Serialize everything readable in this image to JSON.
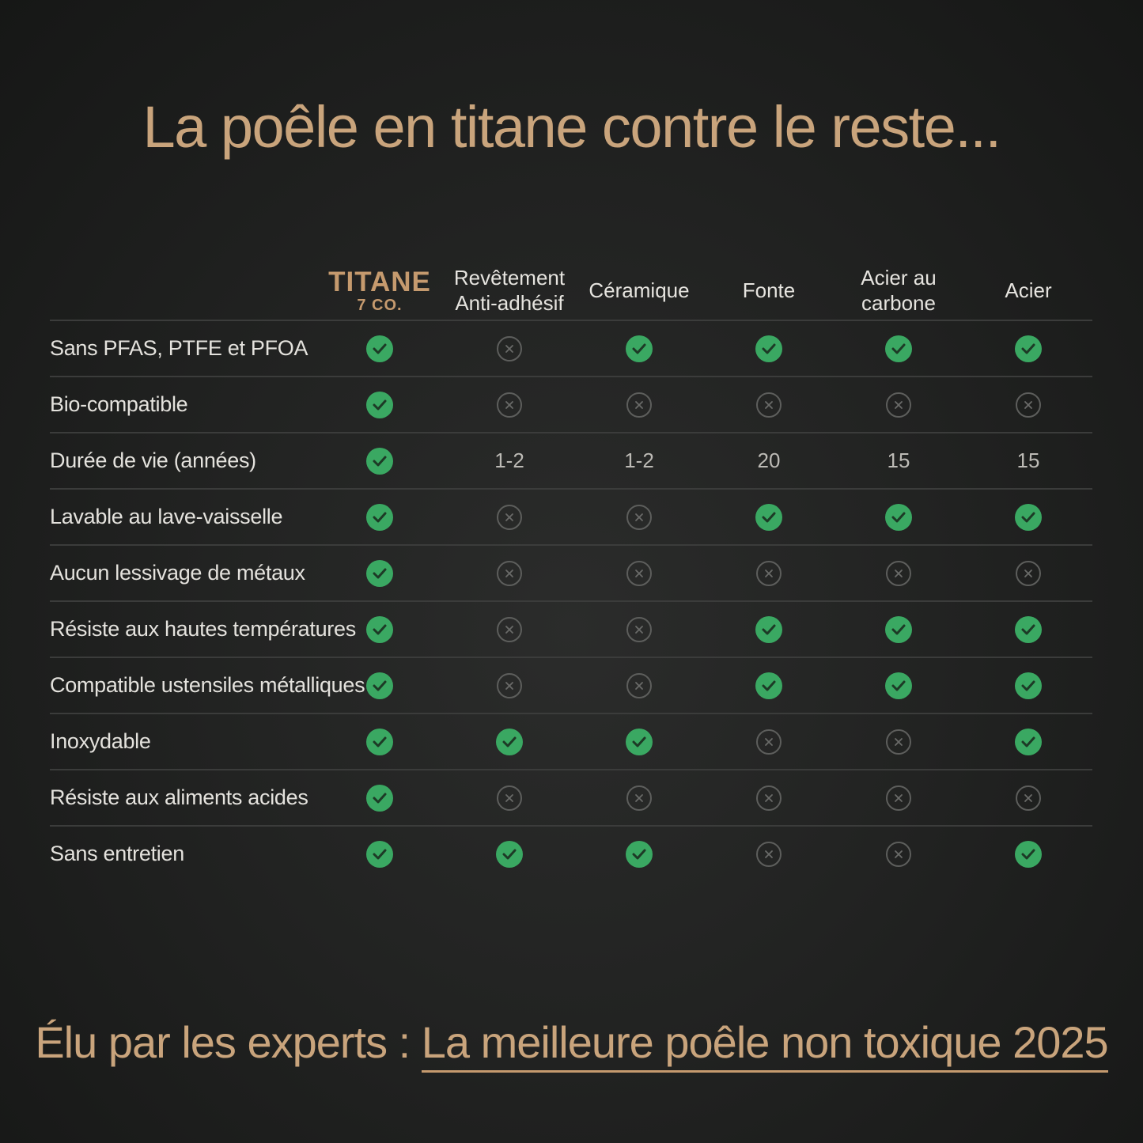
{
  "headline": "La poêle en titane contre le reste...",
  "brand": {
    "name": "TITANE",
    "sub": "7 CO."
  },
  "columns": [
    "Revêtement\nAnti-adhésif",
    "Céramique",
    "Fonte",
    "Acier au\ncarbone",
    "Acier"
  ],
  "colors": {
    "accent": "#c9a47c",
    "check": "#3aa862",
    "cross": "#5d5e5c"
  },
  "icons": {
    "yes": "check-icon",
    "no": "cross-icon"
  },
  "rows": [
    {
      "label": "Sans PFAS, PTFE et PFOA",
      "cells": [
        "yes",
        "no",
        "yes",
        "yes",
        "yes",
        "yes"
      ]
    },
    {
      "label": "Bio-compatible",
      "cells": [
        "yes",
        "no",
        "no",
        "no",
        "no",
        "no"
      ]
    },
    {
      "label": "Durée de vie (années)",
      "cells": [
        "yes",
        "1-2",
        "1-2",
        "20",
        "15",
        "15"
      ]
    },
    {
      "label": "Lavable au lave-vaisselle",
      "cells": [
        "yes",
        "no",
        "no",
        "yes",
        "yes",
        "yes"
      ]
    },
    {
      "label": "Aucun lessivage de métaux",
      "cells": [
        "yes",
        "no",
        "no",
        "no",
        "no",
        "no"
      ]
    },
    {
      "label": "Résiste aux hautes températures",
      "cells": [
        "yes",
        "no",
        "no",
        "yes",
        "yes",
        "yes"
      ]
    },
    {
      "label": "Compatible ustensiles métalliques",
      "cells": [
        "yes",
        "no",
        "no",
        "yes",
        "yes",
        "yes"
      ]
    },
    {
      "label": "Inoxydable",
      "cells": [
        "yes",
        "yes",
        "yes",
        "no",
        "no",
        "yes"
      ]
    },
    {
      "label": "Résiste aux aliments acides",
      "cells": [
        "yes",
        "no",
        "no",
        "no",
        "no",
        "no"
      ]
    },
    {
      "label": "Sans entretien",
      "cells": [
        "yes",
        "yes",
        "yes",
        "no",
        "no",
        "yes"
      ]
    }
  ],
  "footer": {
    "prefix": "Élu par les experts : ",
    "highlight": "La meilleure poêle non toxique 2025"
  }
}
